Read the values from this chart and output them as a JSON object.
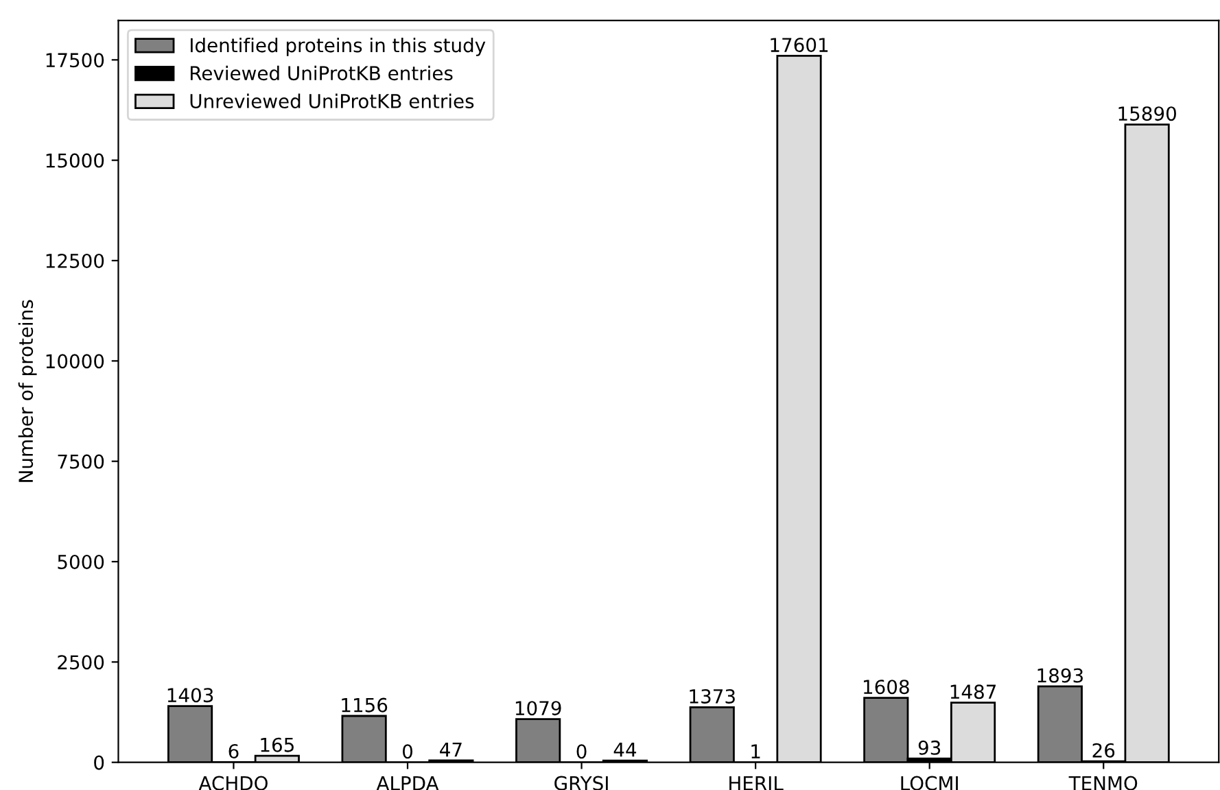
{
  "chart_data": {
    "type": "bar",
    "ylabel": "Number of proteins",
    "categories": [
      "ACHDO",
      "ALPDA",
      "GRYSI",
      "HERIL",
      "LOCMI",
      "TENMO"
    ],
    "series": [
      {
        "name": "Identified proteins in this study",
        "color": "#808080",
        "values": [
          1403,
          1156,
          1079,
          1373,
          1608,
          1893
        ]
      },
      {
        "name": "Reviewed UniProtKB entries",
        "color": "#000000",
        "values": [
          6,
          0,
          0,
          1,
          93,
          26
        ]
      },
      {
        "name": "Unreviewed UniProtKB entries",
        "color": "#dcdcdc",
        "values": [
          165,
          47,
          44,
          17601,
          1487,
          15890
        ]
      }
    ],
    "ylim": [
      0,
      18480
    ],
    "yticks": [
      0,
      2500,
      5000,
      7500,
      10000,
      12500,
      15000,
      17500
    ],
    "data_labels": true,
    "grid": false,
    "legend": "top left"
  }
}
